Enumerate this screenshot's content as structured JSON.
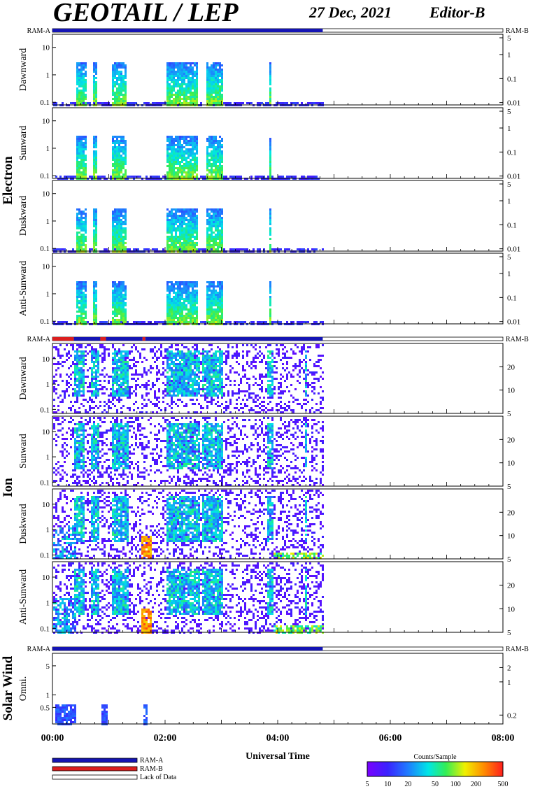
{
  "header": {
    "title": "GEOTAIL / LEP",
    "date": "27 Dec, 2021",
    "editor": "Editor-B"
  },
  "colors": {
    "ram_a": "#1414b4",
    "ram_b": "#dc1e1e",
    "lack_of_data": "#ffffff"
  },
  "ram_labels": {
    "left": "RAM-A",
    "right": "RAM-B"
  },
  "groups": {
    "electron": "Electron",
    "ion": "Ion",
    "solar_wind": "Solar Wind"
  },
  "chart_data": {
    "type": "heatmap",
    "xlabel": "Universal Time",
    "x_range_hours": [
      0,
      8
    ],
    "x_ticks": [
      "00:00",
      "02:00",
      "04:00",
      "06:00",
      "08:00"
    ],
    "data_end_hour": 4.8,
    "colorbar": {
      "title": "Counts/Sample",
      "ticks": [
        "5",
        "10",
        "20",
        "50",
        "100",
        "200",
        "500"
      ],
      "range": [
        5,
        500
      ],
      "scale": "log"
    },
    "legend": [
      {
        "name": "RAM-A",
        "color": "#1414b4"
      },
      {
        "name": "RAM-B",
        "color": "#dc1e1e"
      },
      {
        "name": "Lack of Data",
        "color": "#ffffff"
      }
    ],
    "mode_bars": [
      {
        "group": "electron",
        "segments": [
          {
            "from": 0,
            "to": 4.8,
            "mode": "RAM-A"
          }
        ]
      },
      {
        "group": "ion",
        "segments": [
          {
            "from": 0,
            "to": 0.38,
            "mode": "RAM-B"
          },
          {
            "from": 0.38,
            "to": 0.85,
            "mode": "RAM-A"
          },
          {
            "from": 0.85,
            "to": 0.95,
            "mode": "RAM-B"
          },
          {
            "from": 0.95,
            "to": 1.6,
            "mode": "RAM-A"
          },
          {
            "from": 1.6,
            "to": 1.65,
            "mode": "RAM-B"
          },
          {
            "from": 1.65,
            "to": 4.8,
            "mode": "RAM-A"
          }
        ]
      },
      {
        "group": "solar_wind",
        "segments": [
          {
            "from": 0,
            "to": 4.8,
            "mode": "RAM-A"
          }
        ]
      }
    ],
    "panels": [
      {
        "id": "e-dawn",
        "group": "electron",
        "label": "Dawnward",
        "left_ticks": [
          {
            "v": 0.1,
            "t": "0.1"
          },
          {
            "v": 1,
            "t": "1"
          },
          {
            "v": 10,
            "t": "10"
          }
        ],
        "right_ticks": [
          {
            "v": 0.01,
            "t": "0.01"
          },
          {
            "v": 0.1,
            "t": "0.1"
          },
          {
            "v": 1,
            "t": "1"
          },
          {
            "v": 5,
            "t": "5"
          }
        ]
      },
      {
        "id": "e-sun",
        "group": "electron",
        "label": "Sunward",
        "left_ticks": [
          {
            "v": 0.1,
            "t": "0.1"
          },
          {
            "v": 1,
            "t": "1"
          },
          {
            "v": 10,
            "t": "10"
          }
        ],
        "right_ticks": [
          {
            "v": 0.01,
            "t": "0.01"
          },
          {
            "v": 0.1,
            "t": "0.1"
          },
          {
            "v": 1,
            "t": "1"
          },
          {
            "v": 5,
            "t": "5"
          }
        ]
      },
      {
        "id": "e-dusk",
        "group": "electron",
        "label": "Duskward",
        "left_ticks": [
          {
            "v": 0.1,
            "t": "0.1"
          },
          {
            "v": 1,
            "t": "1"
          },
          {
            "v": 10,
            "t": "10"
          }
        ],
        "right_ticks": [
          {
            "v": 0.01,
            "t": "0.01"
          },
          {
            "v": 0.1,
            "t": "0.1"
          },
          {
            "v": 1,
            "t": "1"
          },
          {
            "v": 5,
            "t": "5"
          }
        ]
      },
      {
        "id": "e-anti",
        "group": "electron",
        "label": "Anti-Sunward",
        "left_ticks": [
          {
            "v": 0.1,
            "t": "0.1"
          },
          {
            "v": 1,
            "t": "1"
          },
          {
            "v": 10,
            "t": "10"
          }
        ],
        "right_ticks": [
          {
            "v": 0.01,
            "t": "0.01"
          },
          {
            "v": 0.1,
            "t": "0.1"
          },
          {
            "v": 1,
            "t": "1"
          },
          {
            "v": 5,
            "t": "5"
          }
        ]
      },
      {
        "id": "i-dawn",
        "group": "ion",
        "label": "Dawnward",
        "left_ticks": [
          {
            "v": 0.1,
            "t": "0.1"
          },
          {
            "v": 1,
            "t": "1"
          },
          {
            "v": 10,
            "t": "10"
          }
        ],
        "right_ticks": [
          {
            "v": 5,
            "t": "5"
          },
          {
            "v": 10,
            "t": "10"
          },
          {
            "v": 20,
            "t": "20"
          }
        ]
      },
      {
        "id": "i-sun",
        "group": "ion",
        "label": "Sunward",
        "left_ticks": [
          {
            "v": 0.1,
            "t": "0.1"
          },
          {
            "v": 1,
            "t": "1"
          },
          {
            "v": 10,
            "t": "10"
          }
        ],
        "right_ticks": [
          {
            "v": 5,
            "t": "5"
          },
          {
            "v": 10,
            "t": "10"
          },
          {
            "v": 20,
            "t": "20"
          }
        ]
      },
      {
        "id": "i-dusk",
        "group": "ion",
        "label": "Duskward",
        "left_ticks": [
          {
            "v": 0.1,
            "t": "0.1"
          },
          {
            "v": 1,
            "t": "1"
          },
          {
            "v": 10,
            "t": "10"
          }
        ],
        "right_ticks": [
          {
            "v": 5,
            "t": "5"
          },
          {
            "v": 10,
            "t": "10"
          },
          {
            "v": 20,
            "t": "20"
          }
        ]
      },
      {
        "id": "i-anti",
        "group": "ion",
        "label": "Anti-Sunward",
        "left_ticks": [
          {
            "v": 0.1,
            "t": "0.1"
          },
          {
            "v": 1,
            "t": "1"
          },
          {
            "v": 10,
            "t": "10"
          }
        ],
        "right_ticks": [
          {
            "v": 5,
            "t": "5"
          },
          {
            "v": 10,
            "t": "10"
          },
          {
            "v": 20,
            "t": "20"
          }
        ]
      },
      {
        "id": "sw-omni",
        "group": "solar_wind",
        "label": "Omni.",
        "left_ticks": [
          {
            "v": 0.5,
            "t": "0.5"
          },
          {
            "v": 1,
            "t": "1"
          },
          {
            "v": 5,
            "t": "5"
          }
        ],
        "right_ticks": [
          {
            "v": 0.2,
            "t": "0.2"
          },
          {
            "v": 1,
            "t": "1"
          },
          {
            "v": 2,
            "t": "2"
          }
        ]
      }
    ]
  }
}
